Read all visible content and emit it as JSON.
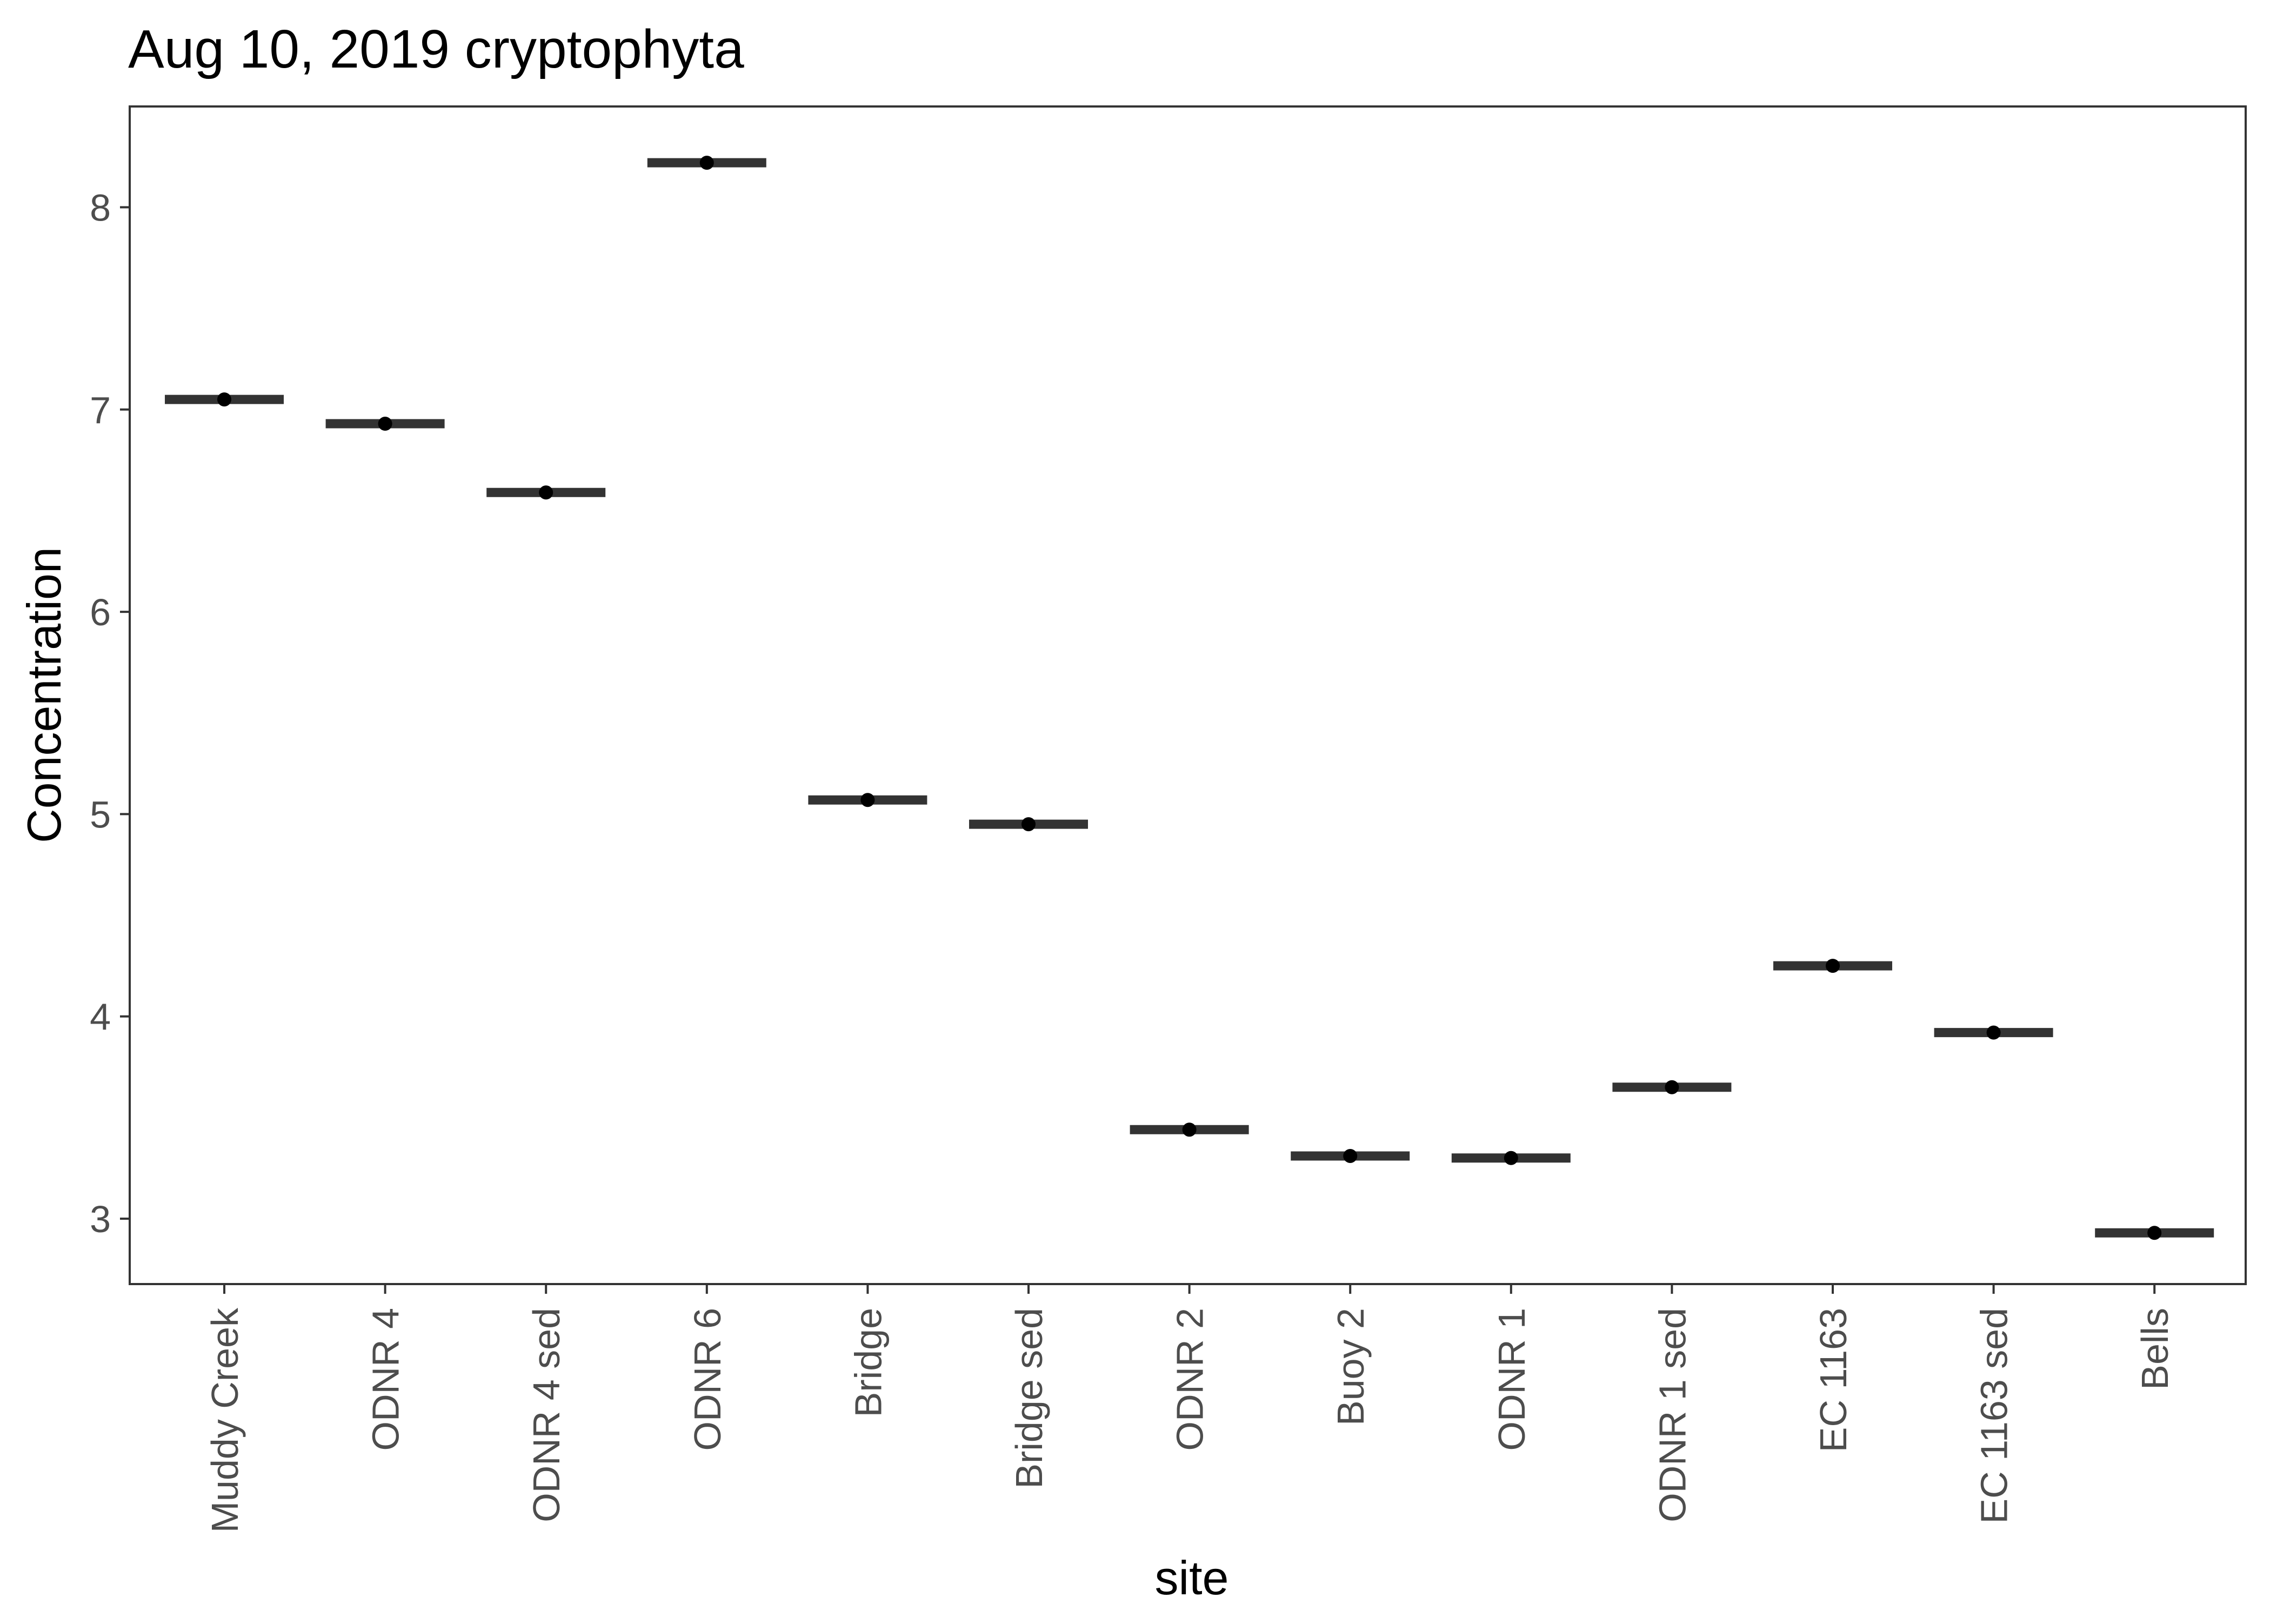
{
  "chart_data": {
    "type": "scatter",
    "title": "Aug 10, 2019 cryptophyta",
    "xlabel": "site",
    "ylabel": "Concentration",
    "categories": [
      "Muddy Creek",
      "ODNR 4",
      "ODNR 4 sed",
      "ODNR 6",
      "Bridge",
      "Bridge sed",
      "ODNR 2",
      "Buoy 2",
      "ODNR 1",
      "ODNR 1 sed",
      "EC 1163",
      "EC 1163 sed",
      "Bells"
    ],
    "values": [
      7.05,
      6.93,
      6.59,
      8.22,
      5.07,
      4.95,
      3.44,
      3.31,
      3.3,
      3.65,
      4.25,
      3.92,
      2.93
    ],
    "yticks": [
      3,
      4,
      5,
      6,
      7,
      8
    ],
    "ylim": [
      2.67,
      8.48
    ],
    "grid": false,
    "legend": "none",
    "colors": {
      "crossbar": "#333333",
      "point": "#000000",
      "axis": "#333333",
      "tick_text": "#4d4d4d"
    }
  }
}
